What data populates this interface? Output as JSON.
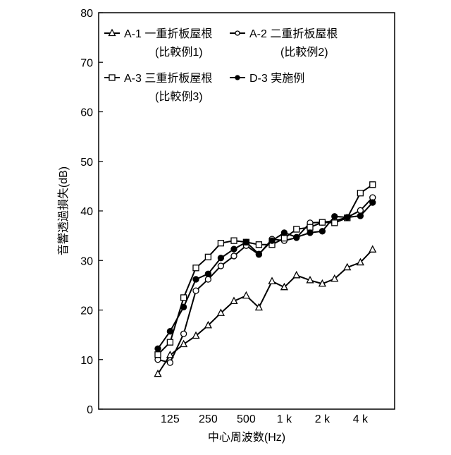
{
  "chart_data": {
    "type": "line",
    "xlabel": "中心周波数(Hz)",
    "ylabel": "音響透過損失(dB)",
    "ylim": [
      0,
      80
    ],
    "yticks": [
      0,
      10,
      20,
      30,
      40,
      50,
      60,
      70,
      80
    ],
    "x": [
      100,
      125,
      160,
      200,
      250,
      315,
      400,
      500,
      630,
      800,
      1000,
      1250,
      1600,
      2000,
      2500,
      3150,
      4000,
      5000
    ],
    "xtick_labels": [
      {
        "freq": 125,
        "label": "125"
      },
      {
        "freq": 250,
        "label": "250"
      },
      {
        "freq": 500,
        "label": "500"
      },
      {
        "freq": 1000,
        "label": "1 k"
      },
      {
        "freq": 2000,
        "label": "2 k"
      },
      {
        "freq": 4000,
        "label": "4 k"
      }
    ],
    "grid": false,
    "legend_position": "top",
    "series": [
      {
        "name": "A-1 一重折板屋根",
        "note": "(比較例1)",
        "marker": "triangle-open",
        "values": [
          7.1,
          10.9,
          13.1,
          14.8,
          16.9,
          19.4,
          21.8,
          22.9,
          20.5,
          25.8,
          24.6,
          27.0,
          26.0,
          25.3,
          26.3,
          28.6,
          29.6,
          32.2
        ]
      },
      {
        "name": "A-2 二重折板屋根",
        "note": "(比較例2)",
        "marker": "circle-open",
        "values": [
          10.0,
          9.4,
          15.2,
          23.9,
          26.2,
          28.9,
          30.9,
          33.0,
          31.2,
          34.3,
          34.0,
          34.6,
          37.6,
          37.7,
          38.0,
          38.7,
          40.1,
          42.7
        ]
      },
      {
        "name": "A-3 三重折板屋根",
        "note": "(比較例3)",
        "marker": "square-open",
        "values": [
          11.0,
          13.5,
          22.5,
          28.5,
          30.7,
          33.5,
          34.0,
          33.7,
          33.2,
          33.2,
          34.5,
          36.3,
          36.7,
          37.7,
          37.6,
          38.6,
          43.6,
          45.3
        ]
      },
      {
        "name": "D-3 実施例",
        "note": "",
        "marker": "circle-filled",
        "values": [
          12.2,
          15.7,
          20.6,
          26.2,
          27.3,
          30.5,
          32.3,
          33.7,
          31.3,
          34.0,
          35.6,
          34.7,
          35.6,
          35.9,
          38.9,
          38.7,
          39.0,
          41.7
        ]
      }
    ]
  }
}
